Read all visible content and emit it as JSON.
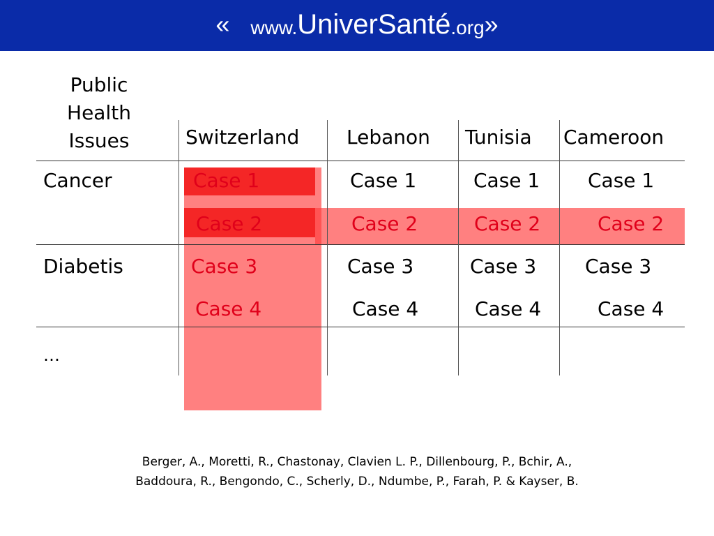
{
  "header": {
    "quote_open": "«",
    "www_prefix": "www.",
    "site_name": "UniverSanté",
    "tld": ".org",
    "quote_close": "»"
  },
  "table": {
    "issues_header": [
      "Public",
      "Health",
      "Issues"
    ],
    "countries": [
      "Switzerland",
      "Lebanon",
      "Tunisia",
      "Cameroon"
    ],
    "groups": [
      {
        "issue": "Cancer",
        "cases": [
          "Case 1",
          "Case 2"
        ]
      },
      {
        "issue": "Diabetis",
        "cases": [
          "Case 3",
          "Case 4"
        ]
      },
      {
        "issue": "…",
        "cases": []
      }
    ]
  },
  "citation": {
    "line1": "Berger, A., Moretti, R., Chastonay, Clavien L. P., Dillenbourg, P., Bchir, A.,",
    "line2": "Baddoura, R., Bengondo, C., Scherly, D., Ndumbe, P.,  Farah, P. &  Kayser, B."
  },
  "colors": {
    "header_bg": "#0a2ba8",
    "highlight": "#ff3c3c",
    "highlight_text": "#e0001a"
  }
}
